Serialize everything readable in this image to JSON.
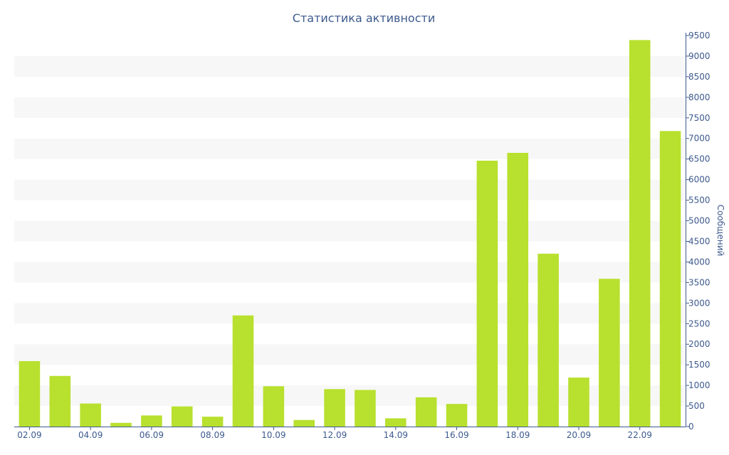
{
  "chart_data": {
    "type": "bar",
    "title": "Статистика активности",
    "xlabel": "",
    "ylabel": "Сообщений",
    "categories": [
      "02.09",
      "03.09",
      "04.09",
      "05.09",
      "06.09",
      "07.09",
      "08.09",
      "09.09",
      "10.09",
      "11.09",
      "12.09",
      "13.09",
      "14.09",
      "15.09",
      "16.09",
      "17.09",
      "18.09",
      "19.09",
      "20.09",
      "21.09",
      "22.09",
      "23.09"
    ],
    "x_tick_labels": [
      "02.09",
      "04.09",
      "06.09",
      "08.09",
      "10.09",
      "12.09",
      "14.09",
      "16.09",
      "18.09",
      "20.09",
      "22.09"
    ],
    "values": [
      1590,
      1230,
      560,
      90,
      270,
      490,
      240,
      2700,
      980,
      160,
      910,
      890,
      200,
      710,
      550,
      6460,
      6650,
      4200,
      1190,
      3590,
      9390,
      7180
    ],
    "ylim": [
      0,
      9500
    ],
    "y_ticks": [
      0,
      500,
      1000,
      1500,
      2000,
      2500,
      3000,
      3500,
      4000,
      4500,
      5000,
      5500,
      6000,
      6500,
      7000,
      7500,
      8000,
      8500,
      9000,
      9500
    ],
    "y_axis_position": "right",
    "grid": "alternating horizontal bands",
    "colors": {
      "bar": "#b8e02e",
      "band": "#f7f7f7",
      "axis": "#3d5a8e",
      "text": "#3d5a8e"
    }
  }
}
